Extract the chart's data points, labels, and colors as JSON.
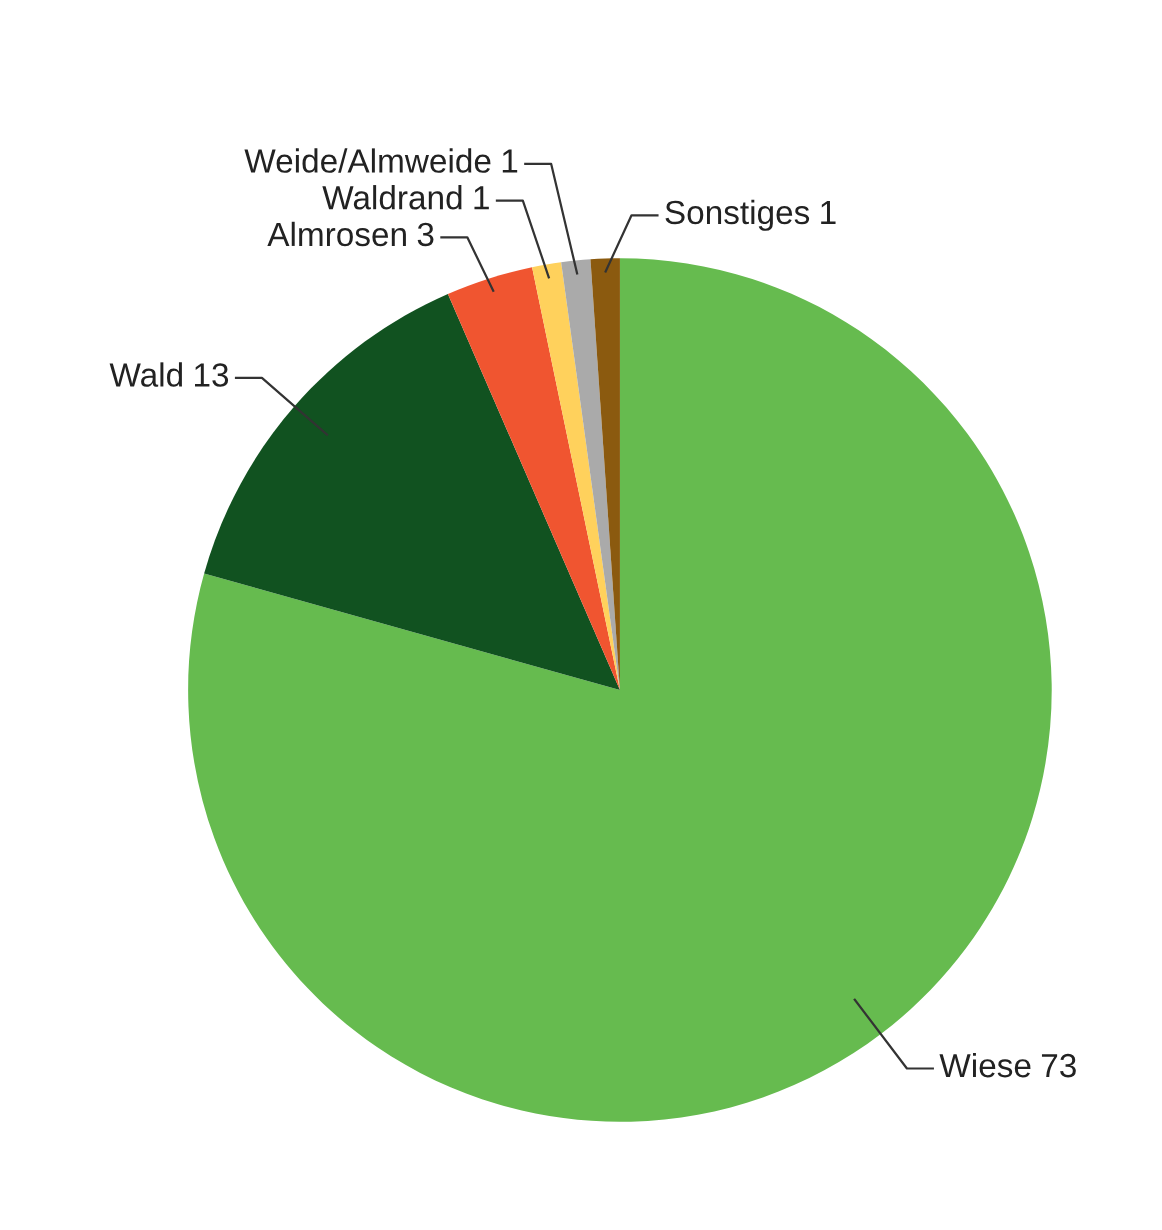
{
  "chart_data": {
    "type": "pie",
    "categories": [
      "Wiese",
      "Wald",
      "Almrosen",
      "Waldrand",
      "Weide/Almweide",
      "Sonstiges"
    ],
    "values": [
      73,
      13,
      3,
      1,
      1,
      1
    ],
    "colors": [
      "#66bb4f",
      "#115220",
      "#f05530",
      "#ffd15c",
      "#aaaaaa",
      "#8b5a0f"
    ],
    "data_labels": true
  }
}
